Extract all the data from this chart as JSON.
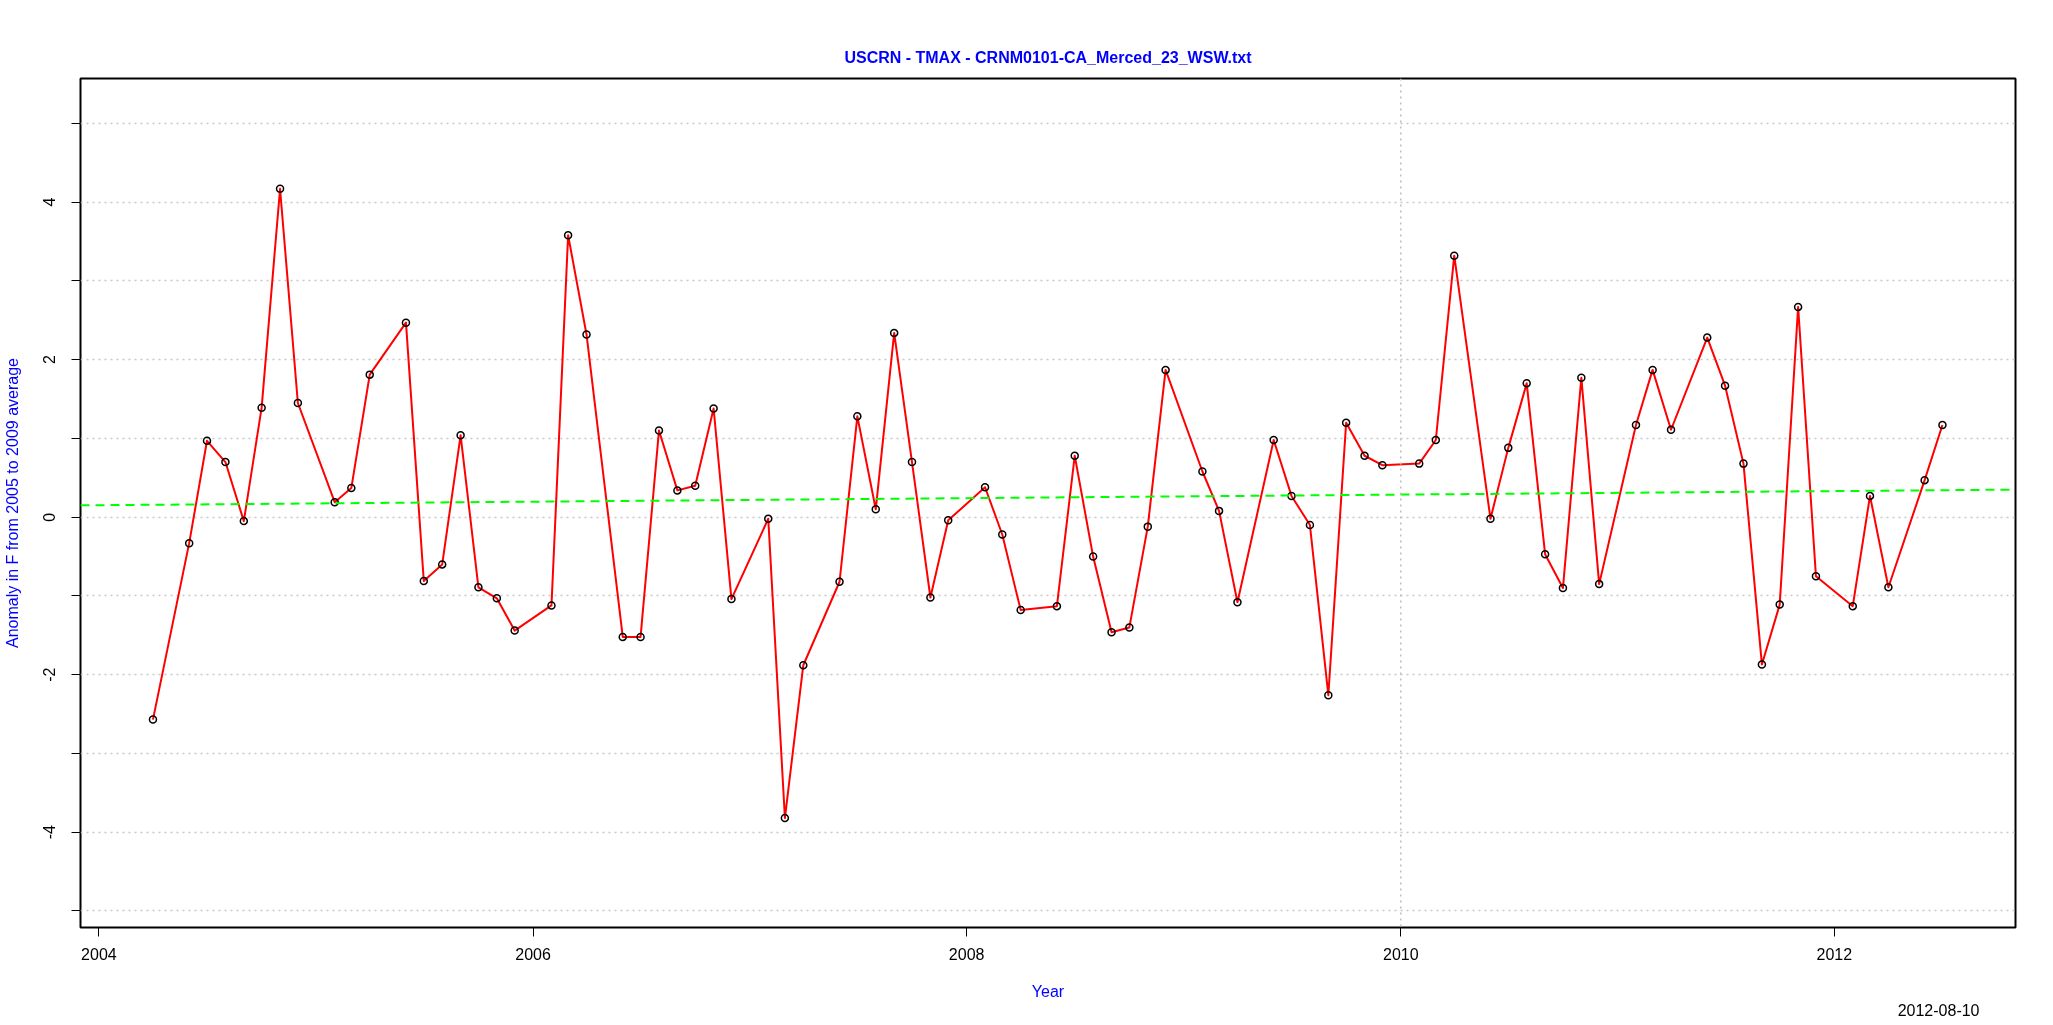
{
  "chart_data": {
    "type": "line",
    "title": "USCRN - TMAX - CRNM0101-CA_Merced_23_WSW.txt",
    "xlabel": "Year",
    "ylabel": "Anomaly in F from 2005 to 2009 average",
    "annotations": [
      "2012-08-10"
    ],
    "x": [
      "2004-04",
      "2004-06",
      "2004-07",
      "2004-08",
      "2004-09",
      "2004-10",
      "2004-11",
      "2004-12",
      "2005-02",
      "2005-03",
      "2005-04",
      "2005-06",
      "2005-07",
      "2005-08",
      "2005-09",
      "2005-10",
      "2005-11",
      "2005-12",
      "2006-02",
      "2006-03",
      "2006-04",
      "2006-06",
      "2006-07",
      "2006-08",
      "2006-09",
      "2006-10",
      "2006-11",
      "2006-12",
      "2007-02",
      "2007-03",
      "2007-04",
      "2007-06",
      "2007-07",
      "2007-08",
      "2007-09",
      "2007-10",
      "2007-11",
      "2007-12",
      "2008-02",
      "2008-03",
      "2008-04",
      "2008-06",
      "2008-07",
      "2008-08",
      "2008-09",
      "2008-10",
      "2008-11",
      "2008-12",
      "2009-02",
      "2009-03",
      "2009-04",
      "2009-06",
      "2009-07",
      "2009-08",
      "2009-09",
      "2009-10",
      "2009-11",
      "2009-12",
      "2010-02",
      "2010-03",
      "2010-04",
      "2010-06",
      "2010-07",
      "2010-08",
      "2010-09",
      "2010-10",
      "2010-11",
      "2010-12",
      "2011-02",
      "2011-03",
      "2011-04",
      "2011-06",
      "2011-07",
      "2011-08",
      "2011-09",
      "2011-10",
      "2011-11",
      "2011-12",
      "2012-02",
      "2012-03",
      "2012-04",
      "2012-06",
      "2012-07"
    ],
    "series": [
      {
        "color": "#ff0000",
        "marker": "circle",
        "line_style": "solid",
        "values": [
          -2.57,
          -0.33,
          0.97,
          0.7,
          -0.05,
          1.39,
          4.17,
          1.45,
          0.19,
          0.37,
          1.81,
          2.47,
          -0.81,
          -0.6,
          1.04,
          -0.89,
          -1.03,
          -1.44,
          -1.12,
          3.58,
          2.32,
          -1.52,
          -1.52,
          1.1,
          0.34,
          0.4,
          1.38,
          -1.04,
          -0.02,
          -3.82,
          -1.88,
          -0.82,
          1.28,
          0.1,
          2.34,
          0.7,
          -1.02,
          -0.04,
          0.38,
          -0.22,
          -1.18,
          -1.13,
          0.78,
          -0.5,
          -1.46,
          -1.4,
          -0.12,
          1.87,
          0.58,
          0.08,
          -1.08,
          0.98,
          0.27,
          -0.1,
          -2.26,
          1.2,
          0.78,
          0.66,
          0.68,
          0.98,
          3.32,
          -0.02,
          0.88,
          1.7,
          -0.47,
          -0.9,
          1.77,
          -0.85,
          1.17,
          1.87,
          1.11,
          2.28,
          1.67,
          0.68,
          -1.87,
          -1.11,
          2.67,
          -0.75,
          -1.13,
          0.27,
          -0.89,
          0.47,
          1.17
        ]
      },
      {
        "type": "line",
        "color": "#00ff00",
        "marker": "none",
        "line_style": "dashed",
        "x": [
          "2003-12-01",
          "2012-11-01"
        ],
        "values": [
          0.15,
          0.35
        ]
      }
    ],
    "xlim": [
      "2003-12-01",
      "2012-11-01"
    ],
    "xticks": [
      "2004",
      "2006",
      "2008",
      "2010",
      "2012"
    ],
    "ylim": [
      -5.21,
      5.57
    ],
    "yticks": [
      {
        "value": -5,
        "label": null
      },
      -4,
      {
        "value": -3,
        "label": null
      },
      -2,
      {
        "value": -1,
        "label": null
      },
      0,
      {
        "value": 1,
        "label": null
      },
      2,
      {
        "value": 3,
        "label": null
      },
      4,
      {
        "value": 5,
        "label": null
      }
    ],
    "grid": "y",
    "ref_lines": [
      {
        "axis": "x",
        "value": "2010",
        "color": "#bebebe",
        "line_style": "dotted"
      }
    ]
  }
}
